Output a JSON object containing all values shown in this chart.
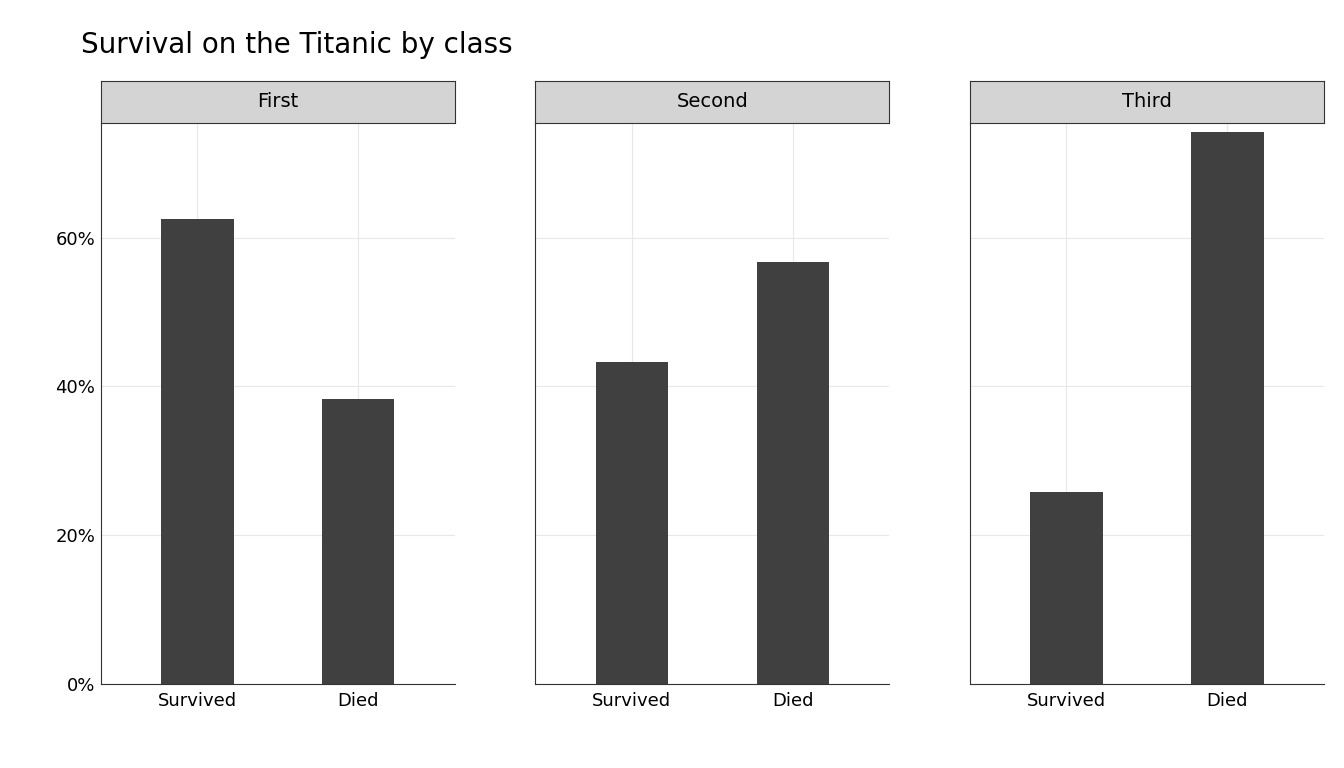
{
  "title": "Survival on the Titanic by class",
  "facets": [
    "First",
    "Second",
    "Third"
  ],
  "categories": [
    "Survived",
    "Died"
  ],
  "values": {
    "First": [
      0.6262,
      0.3838
    ],
    "Second": [
      0.4328,
      0.5672
    ],
    "Third": [
      0.2576,
      0.7424
    ]
  },
  "bar_color": "#404040",
  "background_color": "#ffffff",
  "panel_bg_color": "#ffffff",
  "strip_bg_color": "#d4d4d4",
  "strip_text_color": "#000000",
  "grid_color": "#e8e8e8",
  "spine_color": "#333333",
  "yticks": [
    0.0,
    0.2,
    0.4,
    0.6
  ],
  "ytick_labels": [
    "0%",
    "20%",
    "40%",
    "60%"
  ],
  "ylim": [
    0,
    0.755
  ],
  "title_fontsize": 20,
  "axis_fontsize": 13,
  "strip_fontsize": 14,
  "bar_width": 0.45
}
